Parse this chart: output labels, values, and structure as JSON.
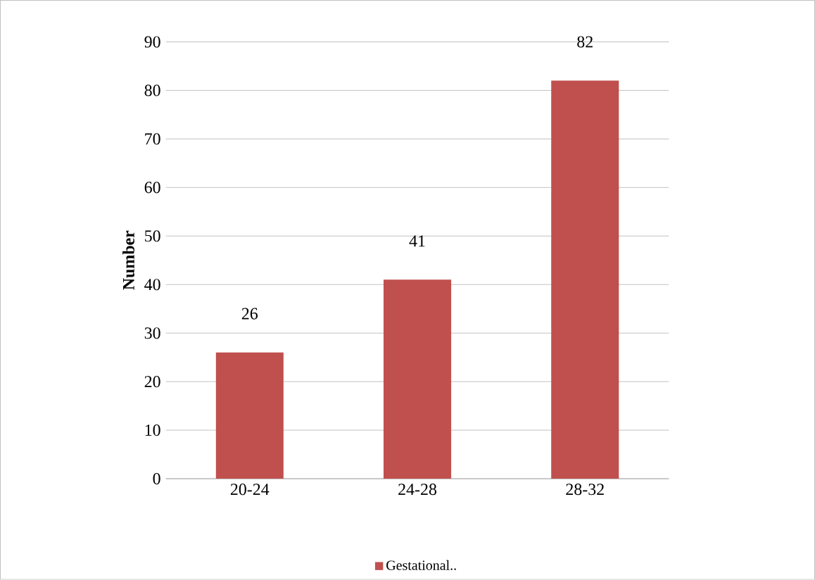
{
  "chart_data": {
    "type": "bar",
    "ylabel": "Number",
    "categories": [
      "20-24",
      "24-28",
      "28-32"
    ],
    "series": [
      {
        "name": "Gestational..",
        "color": "#c0504d",
        "values": [
          26,
          41,
          82
        ]
      }
    ],
    "ylim": [
      0,
      90
    ],
    "yticks": [
      0,
      10,
      20,
      30,
      40,
      50,
      60,
      70,
      80,
      90
    ],
    "grid": "y",
    "legend": "bottom",
    "data_labels": true
  }
}
